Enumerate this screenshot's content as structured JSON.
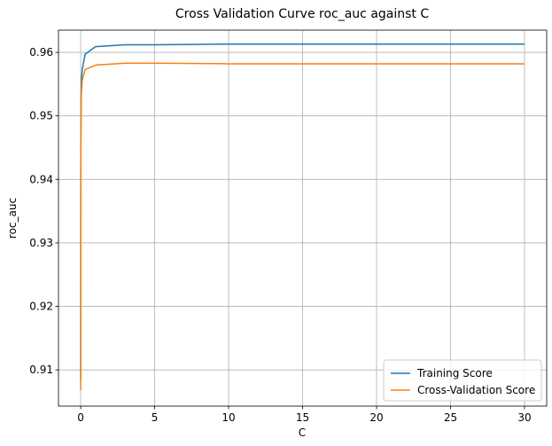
{
  "chart_data": {
    "type": "line",
    "title": "Cross Validation Curve roc_auc against C",
    "xlabel": "C",
    "ylabel": "roc_auc",
    "xlim": [
      -1.5,
      31.5
    ],
    "ylim": [
      0.9043,
      0.9635
    ],
    "xticks": [
      0,
      5,
      10,
      15,
      20,
      25,
      30
    ],
    "yticks": [
      0.91,
      0.92,
      0.93,
      0.94,
      0.95,
      0.96
    ],
    "grid": true,
    "legend_position": "lower-right",
    "series": [
      {
        "name": "Training Score",
        "color": "#1f77b4",
        "x": [
          0.001,
          0.01,
          0.03,
          0.05,
          0.1,
          0.3,
          1,
          3,
          5,
          10,
          20,
          30
        ],
        "y": [
          0.9085,
          0.9452,
          0.9532,
          0.9555,
          0.9572,
          0.9597,
          0.9609,
          0.9612,
          0.9612,
          0.9613,
          0.9613,
          0.9613
        ]
      },
      {
        "name": "Cross-Validation Score",
        "color": "#ff7f0e",
        "x": [
          0.001,
          0.01,
          0.03,
          0.05,
          0.1,
          0.3,
          1,
          3,
          5,
          10,
          20,
          30
        ],
        "y": [
          0.9068,
          0.9425,
          0.951,
          0.9535,
          0.9555,
          0.9573,
          0.958,
          0.9583,
          0.9583,
          0.9582,
          0.9582,
          0.9582
        ]
      }
    ]
  }
}
